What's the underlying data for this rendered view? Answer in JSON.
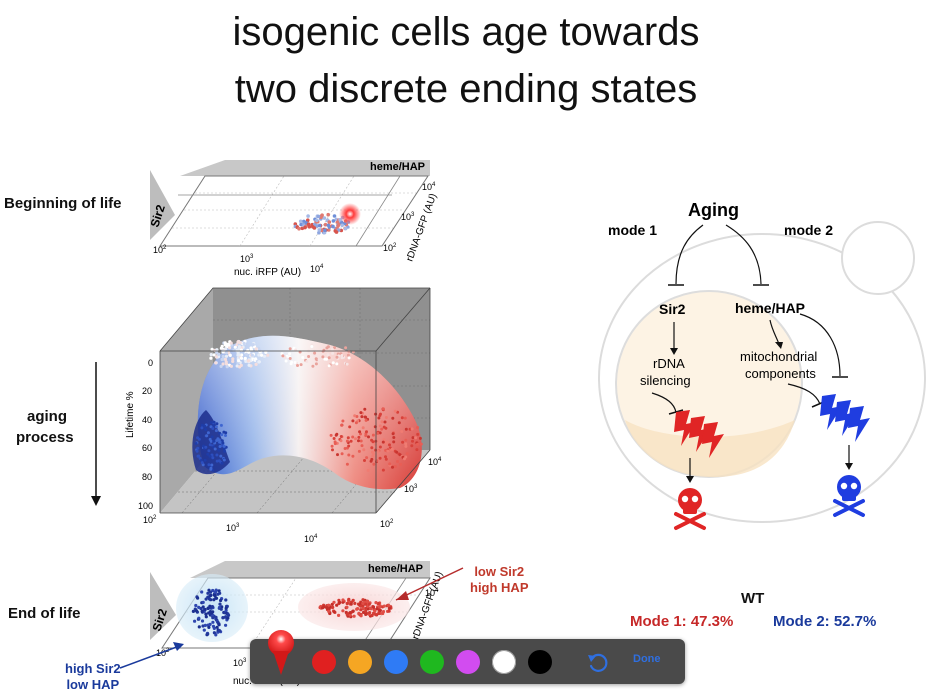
{
  "slide": {
    "title_line1": "isogenic cells age towards",
    "title_line2": "two discrete ending states"
  },
  "left_labels": {
    "beginning": "Beginning of life",
    "aging1": "aging",
    "aging2": "process",
    "end": "End of life"
  },
  "top_plot": {
    "sir2": "Sir2",
    "heme": "heme/HAP",
    "xlabel": "nuc. iRFP (AU)",
    "ylabel": "rDNA-GFP (AU)",
    "x_ticks": [
      "10",
      "10",
      "10"
    ],
    "x_exps": [
      "2",
      "3",
      "4"
    ],
    "y_ticks": [
      "10",
      "10",
      "10"
    ],
    "y_exps": [
      "4",
      "3",
      "2"
    ]
  },
  "mid_plot": {
    "zlabel": "Lifetime %",
    "z_ticks": [
      "0",
      "20",
      "40",
      "60",
      "80",
      "100"
    ],
    "x_ticks": [
      "10",
      "10",
      "10"
    ],
    "x_exps": [
      "2",
      "3",
      "4"
    ],
    "y_ticks": [
      "10",
      "10",
      "10"
    ],
    "y_exps": [
      "4",
      "3",
      "2"
    ]
  },
  "bottom_plot": {
    "sir2": "Sir2",
    "heme": "heme/HAP",
    "xlabel": "nuc. iRFP (AU)",
    "ylabel": "rDNA-GFP (AU)",
    "x_ticks": [
      "10",
      "10"
    ],
    "x_exps": [
      "2",
      "3"
    ],
    "y_ticks": [
      "10"
    ],
    "y_exps": [
      "4"
    ]
  },
  "annotations": {
    "low1": "low Sir2",
    "low2": "high HAP",
    "high1": "high Sir2",
    "high2": "low HAP"
  },
  "diagram": {
    "aging": "Aging",
    "mode1": "mode 1",
    "mode2": "mode 2",
    "sir2": "Sir2",
    "heme": "heme/HAP",
    "rdna1": "rDNA",
    "rdna2": "silencing",
    "mito1": "mitochondrial",
    "mito2": "components"
  },
  "stats": {
    "wt": "WT",
    "mode1": "Mode 1: 47.3%",
    "mode2": "Mode 2: 52.7%",
    "mode1_color": "#c62828",
    "mode2_color": "#1a3a9c"
  },
  "toolbar": {
    "colors": [
      "#e02020",
      "#f5a623",
      "#2f7bf5",
      "#1fb81f",
      "#d24cf0",
      "#ffffff",
      "#000000"
    ],
    "color_names": [
      "red",
      "orange",
      "blue",
      "green",
      "purple",
      "white",
      "black"
    ],
    "pen_icon": "pin-icon",
    "undo_icon": "undo-icon",
    "done_label": "Done"
  }
}
